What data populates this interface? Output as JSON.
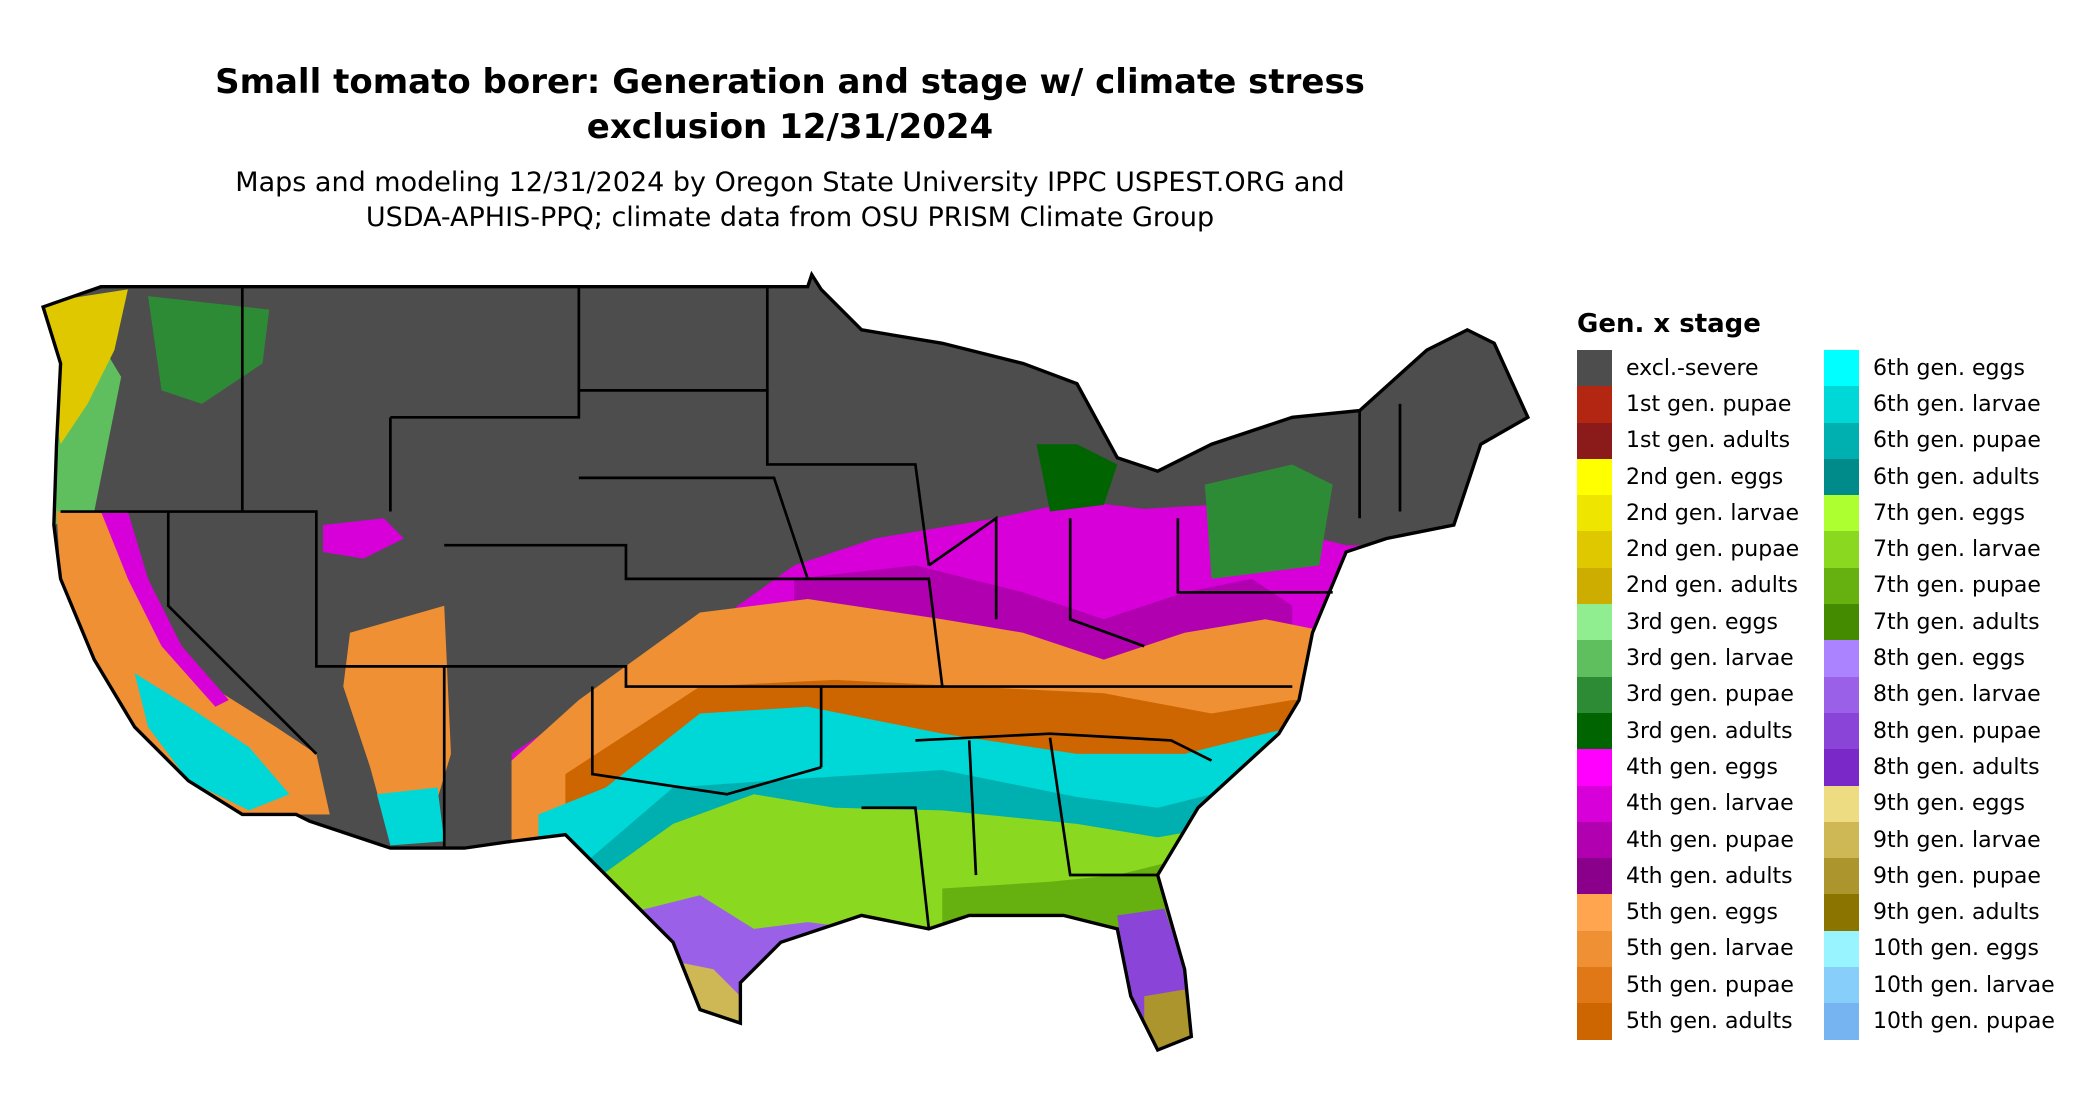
{
  "title": {
    "line1": "Small tomato borer: Generation and stage w/ climate stress",
    "line2": "exclusion 12/31/2024"
  },
  "subtitle": {
    "line1": "Maps and modeling 12/31/2024 by Oregon State University IPPC USPEST.ORG and",
    "line2": "USDA-APHIS-PPQ; climate data from OSU PRISM Climate Group"
  },
  "legend": {
    "title": "Gen. x stage",
    "columns": [
      [
        {
          "label": "excl.-severe",
          "color": "#4d4d4d"
        },
        {
          "label": "1st gen. pupae",
          "color": "#b22612"
        },
        {
          "label": "1st gen. adults",
          "color": "#8b1a1a"
        },
        {
          "label": "2nd gen. eggs",
          "color": "#ffff00"
        },
        {
          "label": "2nd gen. larvae",
          "color": "#eee600"
        },
        {
          "label": "2nd gen. pupae",
          "color": "#e0c800"
        },
        {
          "label": "2nd gen. adults",
          "color": "#cdad00"
        },
        {
          "label": "3rd gen. eggs",
          "color": "#90ee90"
        },
        {
          "label": "3rd gen. larvae",
          "color": "#5fbf5f"
        },
        {
          "label": "3rd gen. pupae",
          "color": "#2e8b35"
        },
        {
          "label": "3rd gen. adults",
          "color": "#006400"
        },
        {
          "label": "4th gen. eggs",
          "color": "#ff00ff"
        },
        {
          "label": "4th gen. larvae",
          "color": "#d800d8"
        },
        {
          "label": "4th gen. pupae",
          "color": "#b000b0"
        },
        {
          "label": "4th gen. adults",
          "color": "#8b008b"
        },
        {
          "label": "5th gen. eggs",
          "color": "#ffa54f"
        },
        {
          "label": "5th gen. larvae",
          "color": "#ee9033"
        },
        {
          "label": "5th gen. pupae",
          "color": "#e07818"
        },
        {
          "label": "5th gen. adults",
          "color": "#cd6600"
        }
      ],
      [
        {
          "label": "6th gen. eggs",
          "color": "#00ffff"
        },
        {
          "label": "6th gen. larvae",
          "color": "#00d8d8"
        },
        {
          "label": "6th gen. pupae",
          "color": "#00b0b0"
        },
        {
          "label": "6th gen. adults",
          "color": "#008b8b"
        },
        {
          "label": "7th gen. eggs",
          "color": "#adff2f"
        },
        {
          "label": "7th gen. larvae",
          "color": "#8ad820"
        },
        {
          "label": "7th gen. pupae",
          "color": "#66b010"
        },
        {
          "label": "7th gen. adults",
          "color": "#458b00"
        },
        {
          "label": "8th gen. eggs",
          "color": "#ab82ff"
        },
        {
          "label": "8th gen. larvae",
          "color": "#9a60e8"
        },
        {
          "label": "8th gen. pupae",
          "color": "#8a45d8"
        },
        {
          "label": "8th gen. adults",
          "color": "#7a28c8"
        },
        {
          "label": "9th gen. eggs",
          "color": "#eedc82"
        },
        {
          "label": "9th gen. larvae",
          "color": "#cdb855"
        },
        {
          "label": "9th gen. pupae",
          "color": "#ab952c"
        },
        {
          "label": "9th gen. adults",
          "color": "#8b7500"
        },
        {
          "label": "10th gen. eggs",
          "color": "#98f5ff"
        },
        {
          "label": "10th gen. larvae",
          "color": "#87cefa"
        },
        {
          "label": "10th gen. pupae",
          "color": "#75b4f0"
        }
      ]
    ]
  }
}
